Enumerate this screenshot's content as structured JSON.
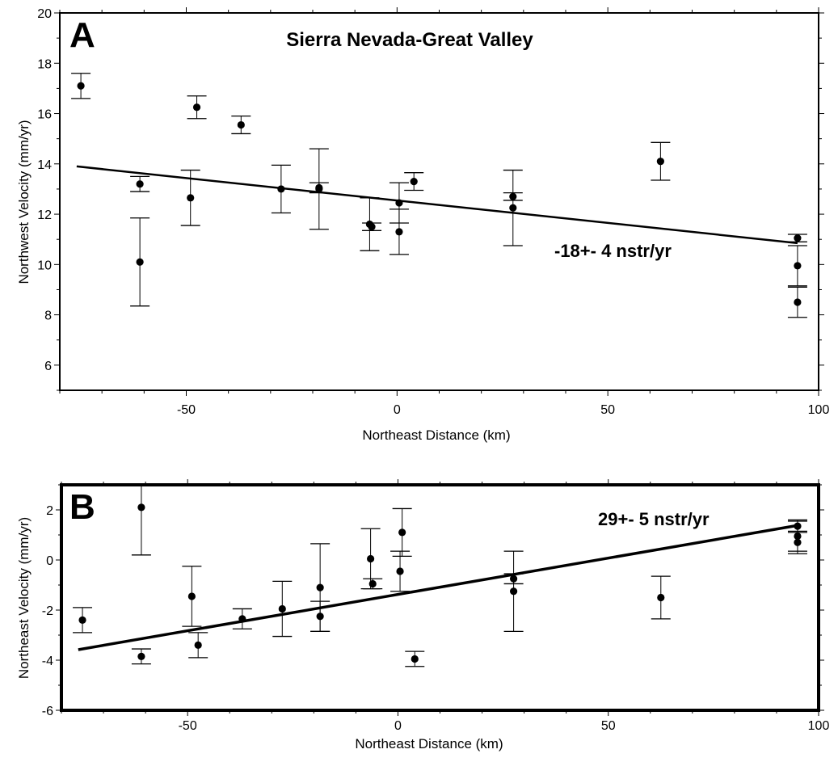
{
  "chart_data": [
    {
      "type": "scatter",
      "panel_label": "A",
      "title": "Sierra Nevada-Great Valley",
      "xlabel": "Northeast Distance (km)",
      "ylabel": "Northwest Velocity (mm/yr)",
      "xlim": [
        -80,
        100
      ],
      "ylim": [
        5,
        20
      ],
      "xticks": [
        -50,
        0,
        50,
        100
      ],
      "yticks": [
        6,
        8,
        10,
        12,
        14,
        16,
        18,
        20
      ],
      "grid": false,
      "annotation": "-18+- 4 nstr/yr",
      "fit_line": {
        "x": [
          -76,
          95
        ],
        "y": [
          13.9,
          10.85
        ]
      },
      "points": [
        {
          "x": -75,
          "y": 17.1,
          "err": 0.5
        },
        {
          "x": -61,
          "y": 13.2,
          "err": 0.3
        },
        {
          "x": -61,
          "y": 10.1,
          "err": 1.75
        },
        {
          "x": -49,
          "y": 12.65,
          "err": 1.1
        },
        {
          "x": -47.5,
          "y": 16.25,
          "err": 0.45
        },
        {
          "x": -37,
          "y": 15.55,
          "err": 0.35
        },
        {
          "x": -27.5,
          "y": 13.0,
          "err": 0.95
        },
        {
          "x": -18.5,
          "y": 13.05,
          "err": 0.2
        },
        {
          "x": -18.5,
          "y": 13.0,
          "err": 1.6
        },
        {
          "x": -6.5,
          "y": 11.6,
          "err": 1.05
        },
        {
          "x": -6,
          "y": 11.5,
          "err": 0.15
        },
        {
          "x": 0.5,
          "y": 12.45,
          "err": 0.8
        },
        {
          "x": 0.5,
          "y": 11.3,
          "err": 0.9
        },
        {
          "x": 4,
          "y": 13.3,
          "err": 0.35
        },
        {
          "x": 27.5,
          "y": 12.7,
          "err": 0.15
        },
        {
          "x": 27.5,
          "y": 12.25,
          "err": 1.5
        },
        {
          "x": 62.5,
          "y": 14.1,
          "err": 0.75
        },
        {
          "x": 95,
          "y": 11.05,
          "err": 0.15
        },
        {
          "x": 95,
          "y": 9.95,
          "err": 0.8
        },
        {
          "x": 95,
          "y": 8.5,
          "err": 0.6
        }
      ]
    },
    {
      "type": "scatter",
      "panel_label": "B",
      "title": "",
      "xlabel": "Northeast Distance (km)",
      "ylabel": "Northeast Velocity (mm/yr)",
      "xlim": [
        -80,
        100
      ],
      "ylim": [
        -6,
        3
      ],
      "xticks": [
        -50,
        0,
        50,
        100
      ],
      "yticks": [
        -6,
        -4,
        -2,
        0,
        2
      ],
      "grid": false,
      "annotation": "29+- 5 nstr/yr",
      "fit_line": {
        "x": [
          -76,
          95
        ],
        "y": [
          -3.58,
          1.38
        ]
      },
      "points": [
        {
          "x": -75,
          "y": -2.4,
          "err": 0.5
        },
        {
          "x": -61,
          "y": 2.1,
          "err": 1.9
        },
        {
          "x": -61,
          "y": -3.85,
          "err": 0.3
        },
        {
          "x": -49,
          "y": -1.45,
          "err": 1.2
        },
        {
          "x": -47.5,
          "y": -3.4,
          "err": 0.5
        },
        {
          "x": -37,
          "y": -2.35,
          "err": 0.4
        },
        {
          "x": -27.5,
          "y": -1.95,
          "err": 1.1
        },
        {
          "x": -18.5,
          "y": -1.1,
          "err": 1.75
        },
        {
          "x": -18.5,
          "y": -2.25,
          "err": 0.6
        },
        {
          "x": -6.5,
          "y": 0.05,
          "err": 1.2
        },
        {
          "x": -6,
          "y": -0.95,
          "err": 0.2
        },
        {
          "x": 0.5,
          "y": -0.45,
          "err": 0.8
        },
        {
          "x": 1,
          "y": 1.1,
          "err": 0.95
        },
        {
          "x": 4,
          "y": -3.95,
          "err": 0.3
        },
        {
          "x": 27.5,
          "y": -0.75,
          "err": 0.2
        },
        {
          "x": 27.5,
          "y": -1.25,
          "err": 1.6
        },
        {
          "x": 62.5,
          "y": -1.5,
          "err": 0.85
        },
        {
          "x": 95,
          "y": 1.35,
          "err": 0.25
        },
        {
          "x": 95,
          "y": 0.95,
          "err": 0.6
        },
        {
          "x": 95,
          "y": 0.7,
          "err": 0.45
        }
      ]
    }
  ]
}
